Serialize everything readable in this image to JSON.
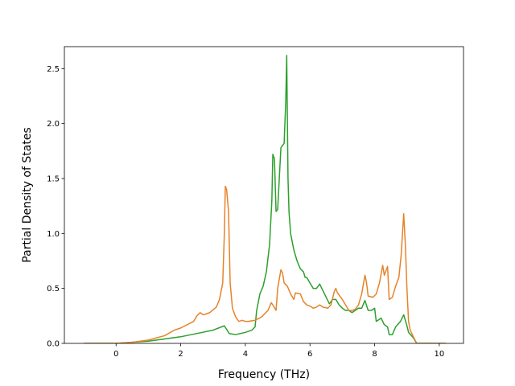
{
  "chart_data": {
    "type": "line",
    "xlabel": "Frequency (THz)",
    "ylabel": "Partial Density of States",
    "xlim": [
      -1.6,
      10.75
    ],
    "ylim": [
      0,
      2.7
    ],
    "x_ticks": [
      "0",
      "2",
      "4",
      "6",
      "8",
      "10"
    ],
    "y_ticks": [
      "0.0",
      "0.5",
      "1.0",
      "1.5",
      "2.0",
      "2.5"
    ],
    "grid": false,
    "series": [
      {
        "color": "#2ca02c",
        "points": [
          [
            -1.0,
            0
          ],
          [
            0.0,
            0
          ],
          [
            0.5,
            0.01
          ],
          [
            1.0,
            0.02
          ],
          [
            1.5,
            0.04
          ],
          [
            2.0,
            0.06
          ],
          [
            2.5,
            0.09
          ],
          [
            3.0,
            0.12
          ],
          [
            3.35,
            0.16
          ],
          [
            3.5,
            0.09
          ],
          [
            3.7,
            0.08
          ],
          [
            4.0,
            0.1
          ],
          [
            4.2,
            0.12
          ],
          [
            4.3,
            0.15
          ],
          [
            4.35,
            0.3
          ],
          [
            4.45,
            0.45
          ],
          [
            4.55,
            0.52
          ],
          [
            4.65,
            0.65
          ],
          [
            4.75,
            0.9
          ],
          [
            4.82,
            1.3
          ],
          [
            4.85,
            1.72
          ],
          [
            4.9,
            1.68
          ],
          [
            4.95,
            1.2
          ],
          [
            5.0,
            1.22
          ],
          [
            5.05,
            1.5
          ],
          [
            5.1,
            1.78
          ],
          [
            5.2,
            1.82
          ],
          [
            5.25,
            2.2
          ],
          [
            5.28,
            2.62
          ],
          [
            5.32,
            1.5
          ],
          [
            5.35,
            1.2
          ],
          [
            5.4,
            1.0
          ],
          [
            5.5,
            0.85
          ],
          [
            5.6,
            0.75
          ],
          [
            5.7,
            0.68
          ],
          [
            5.8,
            0.65
          ],
          [
            5.85,
            0.6
          ],
          [
            5.9,
            0.6
          ],
          [
            6.0,
            0.55
          ],
          [
            6.1,
            0.5
          ],
          [
            6.2,
            0.5
          ],
          [
            6.3,
            0.54
          ],
          [
            6.4,
            0.48
          ],
          [
            6.5,
            0.42
          ],
          [
            6.6,
            0.36
          ],
          [
            6.7,
            0.4
          ],
          [
            6.8,
            0.4
          ],
          [
            6.9,
            0.35
          ],
          [
            7.0,
            0.32
          ],
          [
            7.1,
            0.3
          ],
          [
            7.2,
            0.3
          ],
          [
            7.3,
            0.28
          ],
          [
            7.4,
            0.3
          ],
          [
            7.5,
            0.32
          ],
          [
            7.6,
            0.32
          ],
          [
            7.7,
            0.39
          ],
          [
            7.8,
            0.3
          ],
          [
            7.9,
            0.3
          ],
          [
            8.0,
            0.32
          ],
          [
            8.05,
            0.2
          ],
          [
            8.2,
            0.23
          ],
          [
            8.3,
            0.17
          ],
          [
            8.4,
            0.15
          ],
          [
            8.45,
            0.08
          ],
          [
            8.55,
            0.08
          ],
          [
            8.65,
            0.15
          ],
          [
            8.8,
            0.2
          ],
          [
            8.9,
            0.26
          ],
          [
            9.0,
            0.16
          ],
          [
            9.05,
            0.1
          ],
          [
            9.2,
            0.05
          ],
          [
            9.3,
            0
          ],
          [
            10.0,
            0
          ],
          [
            10.2,
            0
          ]
        ]
      },
      {
        "color": "#e6832a",
        "points": [
          [
            -1.0,
            0
          ],
          [
            0.0,
            0
          ],
          [
            0.5,
            0.01
          ],
          [
            1.0,
            0.03
          ],
          [
            1.5,
            0.07
          ],
          [
            1.8,
            0.12
          ],
          [
            2.0,
            0.14
          ],
          [
            2.4,
            0.2
          ],
          [
            2.5,
            0.25
          ],
          [
            2.6,
            0.28
          ],
          [
            2.7,
            0.26
          ],
          [
            2.9,
            0.28
          ],
          [
            3.1,
            0.33
          ],
          [
            3.2,
            0.4
          ],
          [
            3.3,
            0.55
          ],
          [
            3.35,
            1.0
          ],
          [
            3.38,
            1.43
          ],
          [
            3.42,
            1.4
          ],
          [
            3.48,
            1.2
          ],
          [
            3.53,
            0.55
          ],
          [
            3.6,
            0.32
          ],
          [
            3.7,
            0.24
          ],
          [
            3.8,
            0.2
          ],
          [
            3.9,
            0.21
          ],
          [
            4.0,
            0.2
          ],
          [
            4.1,
            0.2
          ],
          [
            4.3,
            0.21
          ],
          [
            4.5,
            0.24
          ],
          [
            4.7,
            0.3
          ],
          [
            4.8,
            0.37
          ],
          [
            4.85,
            0.35
          ],
          [
            4.95,
            0.3
          ],
          [
            5.0,
            0.5
          ],
          [
            5.1,
            0.67
          ],
          [
            5.15,
            0.64
          ],
          [
            5.2,
            0.55
          ],
          [
            5.3,
            0.52
          ],
          [
            5.4,
            0.45
          ],
          [
            5.5,
            0.4
          ],
          [
            5.55,
            0.46
          ],
          [
            5.7,
            0.45
          ],
          [
            5.8,
            0.38
          ],
          [
            5.9,
            0.35
          ],
          [
            6.0,
            0.34
          ],
          [
            6.1,
            0.32
          ],
          [
            6.2,
            0.33
          ],
          [
            6.3,
            0.35
          ],
          [
            6.4,
            0.33
          ],
          [
            6.55,
            0.32
          ],
          [
            6.65,
            0.35
          ],
          [
            6.75,
            0.47
          ],
          [
            6.8,
            0.5
          ],
          [
            6.85,
            0.46
          ],
          [
            7.0,
            0.4
          ],
          [
            7.1,
            0.35
          ],
          [
            7.2,
            0.3
          ],
          [
            7.3,
            0.3
          ],
          [
            7.4,
            0.31
          ],
          [
            7.5,
            0.35
          ],
          [
            7.6,
            0.45
          ],
          [
            7.7,
            0.62
          ],
          [
            7.75,
            0.55
          ],
          [
            7.8,
            0.43
          ],
          [
            7.95,
            0.42
          ],
          [
            8.05,
            0.45
          ],
          [
            8.15,
            0.55
          ],
          [
            8.25,
            0.71
          ],
          [
            8.3,
            0.62
          ],
          [
            8.4,
            0.7
          ],
          [
            8.45,
            0.4
          ],
          [
            8.55,
            0.42
          ],
          [
            8.65,
            0.52
          ],
          [
            8.75,
            0.6
          ],
          [
            8.82,
            0.8
          ],
          [
            8.9,
            1.18
          ],
          [
            8.95,
            0.9
          ],
          [
            9.0,
            0.5
          ],
          [
            9.05,
            0.2
          ],
          [
            9.1,
            0.12
          ],
          [
            9.2,
            0.06
          ],
          [
            9.3,
            0
          ],
          [
            10.0,
            0
          ],
          [
            10.2,
            0
          ]
        ]
      }
    ]
  }
}
